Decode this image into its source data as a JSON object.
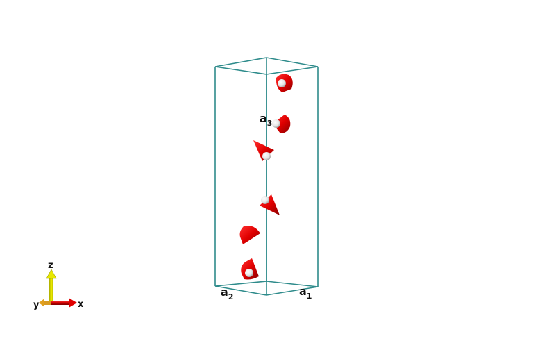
{
  "scene": {
    "background": "#ffffff",
    "cell_color": "#2e8b8b",
    "spin_color": "#e00000",
    "atom_color": "#e8e8e8"
  },
  "lattice_labels": {
    "a1": {
      "main": "a",
      "sub": "1"
    },
    "a2": {
      "main": "a",
      "sub": "2"
    },
    "a3": {
      "main": "a",
      "sub": "3"
    }
  },
  "axes_triad": {
    "x": {
      "label": "x",
      "color": "#e00000"
    },
    "y": {
      "label": "y",
      "color": "#e0a020"
    },
    "z": {
      "label": "z",
      "color": "#e8e800"
    }
  },
  "spins": [
    {
      "id": 1,
      "direction": "back-down",
      "atom_visible": true
    },
    {
      "id": 2,
      "direction": "left",
      "atom_visible": true
    },
    {
      "id": 3,
      "direction": "up-left",
      "atom_visible": true
    },
    {
      "id": 4,
      "direction": "down-right",
      "atom_visible": true
    },
    {
      "id": 5,
      "direction": "right",
      "atom_visible": false
    },
    {
      "id": 6,
      "direction": "front-up",
      "atom_visible": true
    }
  ]
}
